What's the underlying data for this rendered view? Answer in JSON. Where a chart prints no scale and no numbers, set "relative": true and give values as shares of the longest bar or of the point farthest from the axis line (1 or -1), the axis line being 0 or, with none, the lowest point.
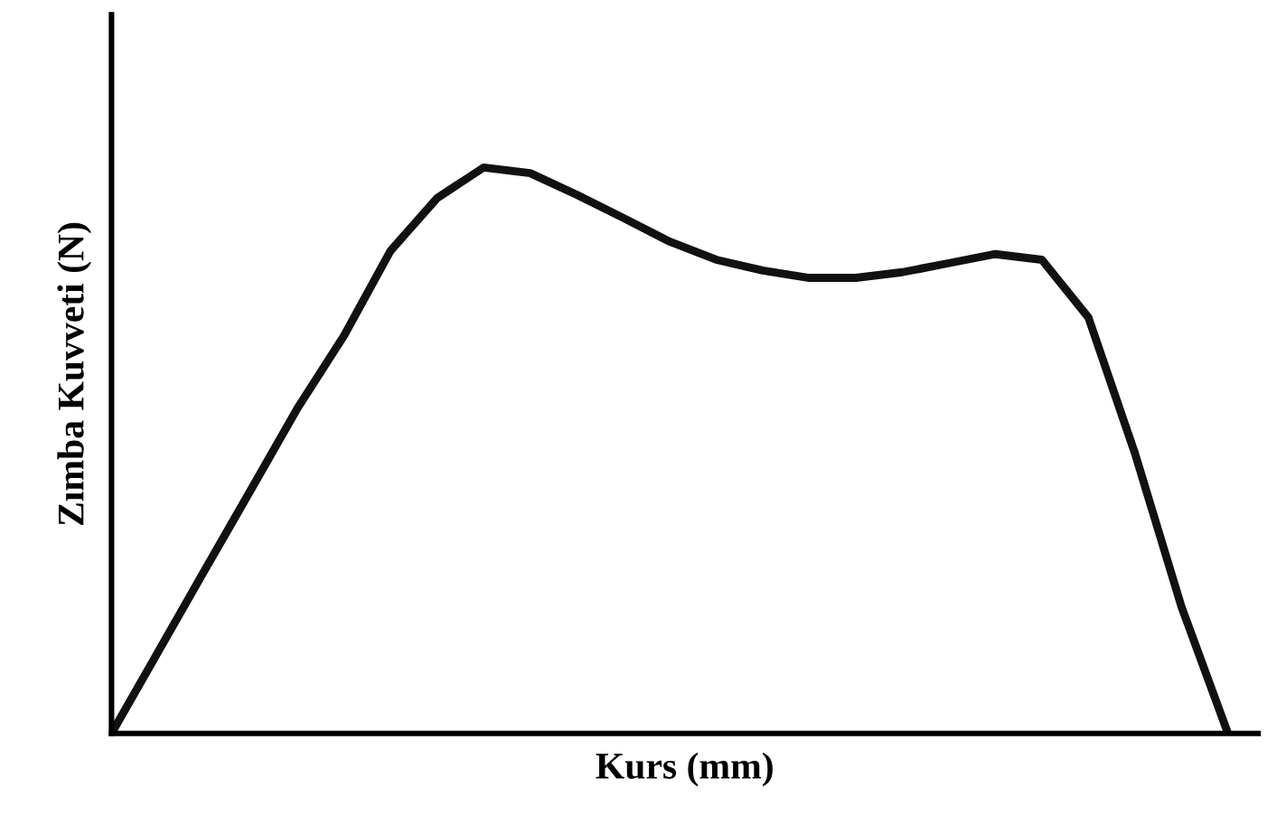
{
  "chart_data": {
    "type": "line",
    "relative": true,
    "xlabel": "Kurs (mm)",
    "ylabel": "Zımba Kuvveti (N)",
    "categories": [
      null,
      null,
      null,
      null,
      null,
      null,
      null,
      null,
      null,
      null,
      null,
      null,
      null,
      null,
      null,
      null,
      null,
      null,
      null,
      null,
      null,
      null,
      null,
      null,
      null
    ],
    "series": [
      {
        "color": "#111111",
        "values": [
          0,
          0.144,
          0.288,
          0.431,
          0.575,
          0.703,
          0.853,
          0.946,
          1,
          0.99,
          0.952,
          0.911,
          0.869,
          0.837,
          0.818,
          0.805,
          0.805,
          0.815,
          0.831,
          0.847,
          0.837,
          0.735,
          0.495,
          0.224,
          0
        ]
      }
    ],
    "grid": false,
    "legend": false,
    "marker": "none",
    "line_style": "solid"
  }
}
